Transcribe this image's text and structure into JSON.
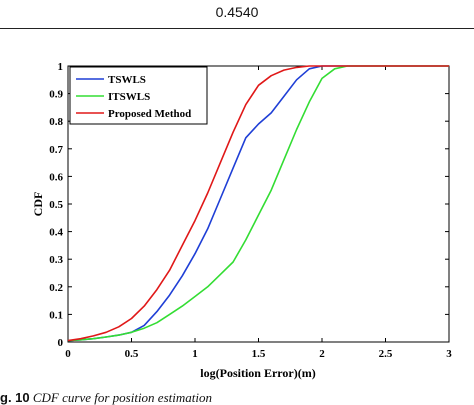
{
  "header": {
    "value": "0.4540"
  },
  "caption": {
    "label": "g. 10",
    "text": "CDF curve for position estimation"
  },
  "chart_data": {
    "type": "line",
    "title": "",
    "xlabel": "log(Position Error)(m)",
    "ylabel": "CDF",
    "xlim": [
      0,
      3
    ],
    "ylim": [
      0,
      1
    ],
    "xticks": [
      "0",
      "0.5",
      "1",
      "1.5",
      "2",
      "2.5",
      "3"
    ],
    "yticks": [
      "0",
      "0.1",
      "0.2",
      "0.3",
      "0.4",
      "0.5",
      "0.6",
      "0.7",
      "0.8",
      "0.9",
      "1"
    ],
    "grid": false,
    "legend_position": "top-left",
    "series": [
      {
        "name": "TSWLS",
        "color": "#1f3fd6",
        "x": [
          0,
          0.1,
          0.2,
          0.3,
          0.4,
          0.5,
          0.6,
          0.7,
          0.8,
          0.9,
          1.0,
          1.1,
          1.2,
          1.3,
          1.4,
          1.5,
          1.6,
          1.7,
          1.8,
          1.9,
          2.0,
          2.1,
          2.2,
          3.0
        ],
        "y": [
          0.005,
          0.008,
          0.012,
          0.018,
          0.025,
          0.035,
          0.06,
          0.11,
          0.17,
          0.24,
          0.32,
          0.41,
          0.52,
          0.63,
          0.74,
          0.79,
          0.83,
          0.89,
          0.95,
          0.99,
          1.0,
          1.0,
          1.0,
          1.0
        ]
      },
      {
        "name": "ITSWLS",
        "color": "#33dd33",
        "x": [
          0,
          0.1,
          0.2,
          0.3,
          0.4,
          0.5,
          0.6,
          0.7,
          0.8,
          0.9,
          1.0,
          1.1,
          1.2,
          1.3,
          1.4,
          1.5,
          1.6,
          1.7,
          1.8,
          1.9,
          2.0,
          2.1,
          2.2,
          3.0
        ],
        "y": [
          0.005,
          0.008,
          0.012,
          0.018,
          0.025,
          0.035,
          0.05,
          0.07,
          0.1,
          0.13,
          0.165,
          0.2,
          0.245,
          0.29,
          0.37,
          0.46,
          0.55,
          0.66,
          0.77,
          0.87,
          0.955,
          0.99,
          1.0,
          1.0
        ]
      },
      {
        "name": "Proposed Method",
        "color": "#e01818",
        "x": [
          0,
          0.1,
          0.2,
          0.3,
          0.4,
          0.5,
          0.6,
          0.7,
          0.8,
          0.9,
          1.0,
          1.1,
          1.2,
          1.3,
          1.4,
          1.5,
          1.6,
          1.7,
          1.8,
          1.9,
          2.0,
          2.1,
          2.2,
          3.0
        ],
        "y": [
          0.005,
          0.012,
          0.022,
          0.035,
          0.055,
          0.085,
          0.13,
          0.19,
          0.26,
          0.35,
          0.44,
          0.54,
          0.65,
          0.76,
          0.86,
          0.93,
          0.965,
          0.985,
          0.995,
          1.0,
          1.0,
          1.0,
          1.0,
          1.0
        ]
      }
    ]
  }
}
